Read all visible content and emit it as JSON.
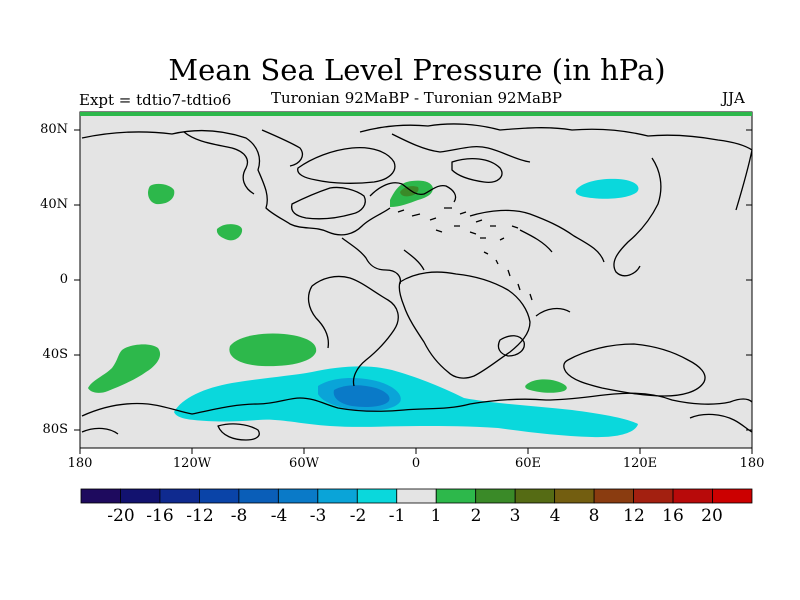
{
  "title": "Mean Sea Level Pressure (in hPa)",
  "subtitle_left": "Expt = tdtio7-tdtio6",
  "subtitle_center": "Turonian  92MaBP - Turonian  92MaBP",
  "subtitle_right": "JJA",
  "lat_labels": [
    "80N",
    "40N",
    "0",
    "40S",
    "80S"
  ],
  "lon_labels": [
    "180",
    "120W",
    "60W",
    "0",
    "60E",
    "120E",
    "180"
  ],
  "colorbar": {
    "labels": [
      "-20",
      "-16",
      "-12",
      "-8",
      "-4",
      "-3",
      "-2",
      "-1",
      "1",
      "2",
      "3",
      "4",
      "8",
      "12",
      "16",
      "20"
    ],
    "colors": [
      "#1e0a5e",
      "#12126f",
      "#0f2a8f",
      "#0a44a8",
      "#0a5eb8",
      "#0a7ac8",
      "#0aa4d8",
      "#0ad8dc",
      "#e4e4e4",
      "#2db84b",
      "#3a8a28",
      "#556b14",
      "#735e10",
      "#8a3c10",
      "#a32010",
      "#b80a0a",
      "#cc0000"
    ]
  },
  "map_colors": {
    "background": "#e4e4e4",
    "coast": "#000000",
    "green": "#2db84b",
    "dark_green": "#3a8a28",
    "cyan": "#0ad8dc",
    "light_blue": "#0aa4d8",
    "mid_blue": "#0a7ac8"
  }
}
